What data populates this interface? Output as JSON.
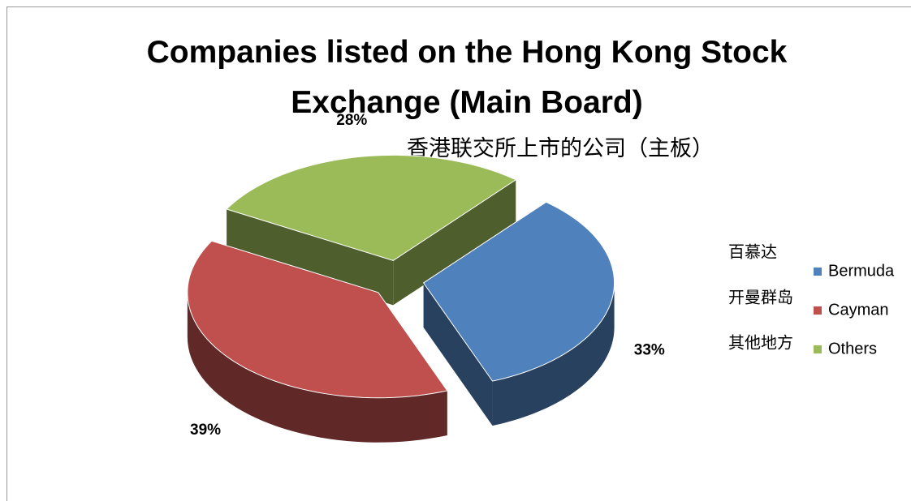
{
  "chart_data": {
    "type": "pie",
    "title": "Companies listed on the Hong Kong Stock Exchange (Main Board)",
    "subtitle": "香港联交所上市的公司（主板）",
    "categories": [
      "Bermuda",
      "Cayman",
      "Others"
    ],
    "values": [
      33,
      39,
      28
    ],
    "value_labels": [
      "33%",
      "39%",
      "28%"
    ],
    "colors": [
      "#4f81bd",
      "#c0504d",
      "#9bbb59"
    ],
    "annotations": [
      "百慕达",
      "开曼群岛",
      "其他地方"
    ],
    "legend": "right"
  }
}
